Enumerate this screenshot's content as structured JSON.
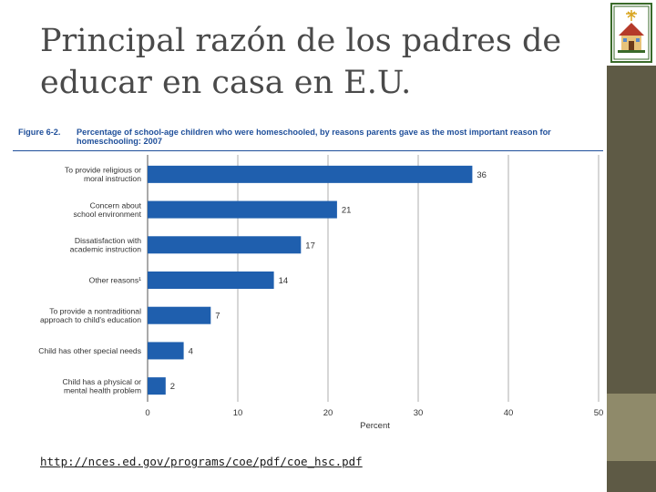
{
  "slide": {
    "title_line1": "Principal razón de los padres de",
    "title_line2": "educar en casa en E.U.",
    "source_url": "http://nces.ed.gov/programs/coe/pdf/coe_hsc.pdf"
  },
  "figure": {
    "number": "Figure 6-2.",
    "caption": "Percentage of school-age children who were homeschooled, by reasons parents gave as the most important reason for homeschooling: 2007"
  },
  "colors": {
    "bar": "#1f5fae",
    "heading": "#1f4f9a",
    "sidebar": "#5e5a45",
    "sidebar_accent": "#8f8a6a"
  },
  "chart_data": {
    "type": "bar",
    "orientation": "horizontal",
    "title": "Percentage of school-age children who were homeschooled, by reasons parents gave as the most important reason for homeschooling: 2007",
    "categories": [
      [
        "To provide religious or",
        "moral instruction"
      ],
      [
        "Concern about",
        "school environment"
      ],
      [
        "Dissatisfaction with",
        "academic instruction"
      ],
      [
        "Other reasons¹"
      ],
      [
        "To provide a nontraditional",
        "approach to child's education"
      ],
      [
        "Child has other special needs"
      ],
      [
        "Child has a physical or",
        "mental health problem"
      ]
    ],
    "values": [
      36,
      21,
      17,
      14,
      7,
      4,
      2
    ],
    "value_labels": [
      "36",
      "21",
      "17",
      "14",
      "7",
      "4",
      "2"
    ],
    "xlabel": "Percent",
    "xlim": [
      0,
      50
    ],
    "xticks": [
      0,
      10,
      20,
      30,
      40,
      50
    ],
    "grid": true
  }
}
